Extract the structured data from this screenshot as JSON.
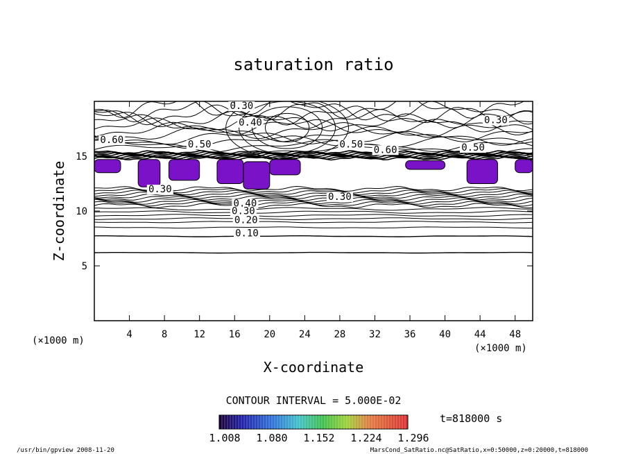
{
  "chart_data": {
    "type": "contour",
    "title": "saturation ratio",
    "xlabel": "X-coordinate",
    "ylabel": "Z-coordinate",
    "x_unit": "(×1000 m)",
    "x_unit_left": "(×1000 m)",
    "xlim": [
      0,
      50
    ],
    "ylim": [
      0,
      20
    ],
    "x_ticks": [
      4,
      8,
      12,
      16,
      20,
      24,
      28,
      32,
      36,
      40,
      44,
      48
    ],
    "y_ticks": [
      5,
      10,
      15
    ],
    "contour_interval_text": "CONTOUR INTERVAL = 5.000E-02",
    "time_text": "t=818000 s",
    "colorbar": {
      "tick_labels": [
        "1.008",
        "1.080",
        "1.152",
        "1.224",
        "1.296"
      ],
      "range": [
        1.008,
        1.296
      ]
    },
    "contour_labels": [
      {
        "text": "0.30",
        "x": 16.8,
        "z": 19.3
      },
      {
        "text": "0.40",
        "x": 17.8,
        "z": 17.8
      },
      {
        "text": "0.30",
        "x": 45.8,
        "z": 18.0
      },
      {
        "text": "0.60",
        "x": 2.0,
        "z": 16.2
      },
      {
        "text": "0.50",
        "x": 12.0,
        "z": 15.8
      },
      {
        "text": "0.50",
        "x": 29.3,
        "z": 15.8
      },
      {
        "text": "0.60",
        "x": 33.2,
        "z": 15.3
      },
      {
        "text": "0.50",
        "x": 43.2,
        "z": 15.5
      },
      {
        "text": "0.30",
        "x": 7.5,
        "z": 11.7
      },
      {
        "text": "0.30",
        "x": 28.0,
        "z": 11.0
      },
      {
        "text": "0.40",
        "x": 17.2,
        "z": 10.4
      },
      {
        "text": "0.30",
        "x": 17.0,
        "z": 9.7
      },
      {
        "text": "0.20",
        "x": 17.3,
        "z": 8.9
      },
      {
        "text": "0.10",
        "x": 17.4,
        "z": 7.7
      }
    ],
    "supersaturated_regions": [
      {
        "x": [
          0.0,
          3.0
        ],
        "z": [
          13.5,
          14.7
        ]
      },
      {
        "x": [
          5.0,
          7.5
        ],
        "z": [
          12.2,
          14.7
        ]
      },
      {
        "x": [
          8.5,
          12.0
        ],
        "z": [
          12.8,
          14.7
        ]
      },
      {
        "x": [
          14.0,
          17.0
        ],
        "z": [
          12.5,
          14.7
        ]
      },
      {
        "x": [
          17.0,
          20.0
        ],
        "z": [
          12.0,
          14.5
        ]
      },
      {
        "x": [
          20.0,
          23.5
        ],
        "z": [
          13.3,
          14.7
        ]
      },
      {
        "x": [
          35.5,
          40.0
        ],
        "z": [
          13.8,
          14.6
        ]
      },
      {
        "x": [
          42.5,
          46.0
        ],
        "z": [
          12.5,
          14.7
        ]
      },
      {
        "x": [
          48.0,
          50.0
        ],
        "z": [
          13.5,
          14.7
        ]
      }
    ]
  },
  "footer": {
    "left": "/usr/bin/gpview  2008-11-20",
    "right": "MarsCond_SatRatio.nc@SatRatio,x=0:50000,z=0:20000,t=818000"
  }
}
